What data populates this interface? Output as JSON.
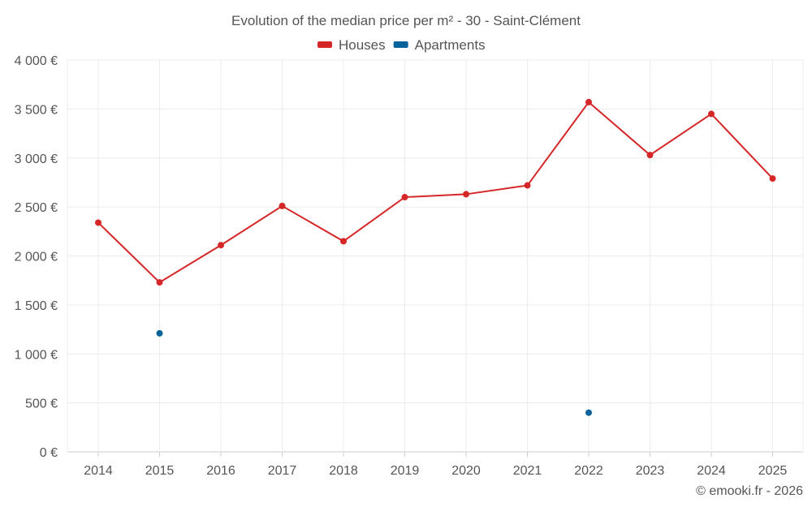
{
  "chart_data": {
    "type": "line",
    "title": "Evolution of the median price per m² - 30 - Saint-Clément",
    "categories": [
      "2014",
      "2015",
      "2016",
      "2017",
      "2018",
      "2019",
      "2020",
      "2021",
      "2022",
      "2023",
      "2024",
      "2025"
    ],
    "series": [
      {
        "name": "Houses",
        "color": "#d62728",
        "values": [
          2340,
          1730,
          2110,
          2510,
          2150,
          2600,
          2630,
          2720,
          3570,
          3030,
          3450,
          2790
        ]
      },
      {
        "name": "Apartments",
        "color": "#08629b",
        "values": [
          null,
          1210,
          null,
          null,
          null,
          null,
          null,
          null,
          400,
          null,
          null,
          null
        ]
      }
    ],
    "ylim": [
      0,
      4000
    ],
    "yticks": [
      0,
      500,
      1000,
      1500,
      2000,
      2500,
      3000,
      3500,
      4000
    ],
    "ytick_labels": [
      "0 €",
      "500 €",
      "1 000 €",
      "1 500 €",
      "2 000 €",
      "2 500 €",
      "3 000 €",
      "3 500 €",
      "4 000 €"
    ],
    "legend_position": "top-center",
    "grid": true,
    "xlabel": "",
    "ylabel": ""
  },
  "credit": "© emooki.fr - 2026"
}
